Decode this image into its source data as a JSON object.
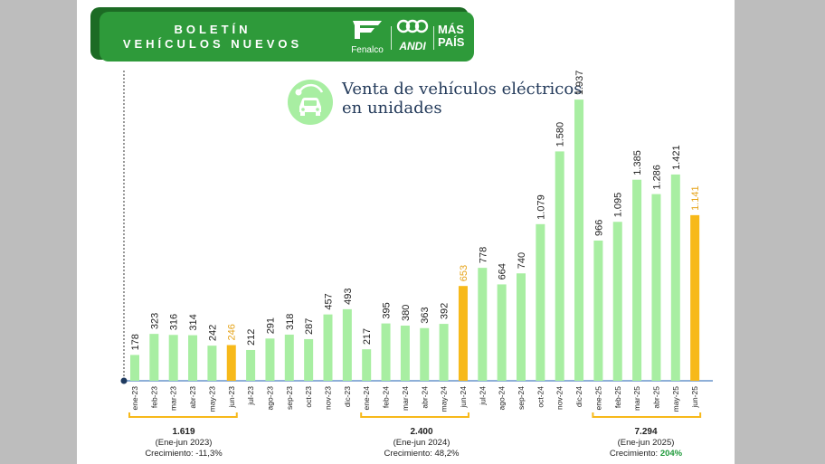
{
  "header": {
    "title_line1": "BOLETÍN",
    "title_line2": "VEHÍCULOS NUEVOS",
    "logos": [
      "Fenalco",
      "ANDI",
      "MÁS",
      "PAÍS"
    ]
  },
  "chart_data": {
    "type": "bar",
    "title_line1": "Venta de vehículos eléctricos",
    "title_line2": "en unidades",
    "categories": [
      "ene-23",
      "feb-23",
      "mar-23",
      "abr-23",
      "may-23",
      "jun-23",
      "jul-23",
      "ago-23",
      "sep-23",
      "oct-23",
      "nov-23",
      "dic-23",
      "ene-24",
      "feb-24",
      "mar-24",
      "abr-24",
      "may-24",
      "jun-24",
      "jul-24",
      "ago-24",
      "sep-24",
      "oct-24",
      "nov-24",
      "dic-24",
      "ene-25",
      "feb-25",
      "mar-25",
      "abr-25",
      "may-25",
      "jun-25"
    ],
    "values": [
      178,
      323,
      316,
      314,
      242,
      246,
      212,
      291,
      318,
      287,
      457,
      493,
      217,
      395,
      380,
      363,
      392,
      653,
      778,
      664,
      740,
      1079,
      1580,
      1937,
      966,
      1095,
      1385,
      1286,
      1421,
      1141
    ],
    "value_labels": [
      "178",
      "323",
      "316",
      "314",
      "242",
      "246",
      "212",
      "291",
      "318",
      "287",
      "457",
      "493",
      "217",
      "395",
      "380",
      "363",
      "392",
      "653",
      "778",
      "664",
      "740",
      "1.079",
      "1.580",
      "1.937",
      "966",
      "1.095",
      "1.385",
      "1.286",
      "1.421",
      "1.141"
    ],
    "highlighted": [
      "jun-23",
      "jun-24",
      "jun-25"
    ],
    "colors": {
      "bar": "#a8eea2",
      "highlight": "#f7b91a",
      "highlight_label": "#e6a41a",
      "axis": "#4a7fc1"
    },
    "ylim": [
      0,
      2000
    ],
    "grid": false,
    "summaries": [
      {
        "total": "1.619",
        "period": "(Ene-jun 2023)",
        "growth_label": "Crecimiento: ",
        "growth_value": "-11,3%",
        "growth_color": "#222222"
      },
      {
        "total": "2.400",
        "period": "(Ene-jun 2024)",
        "growth_label": "Crecimiento: ",
        "growth_value": "48,2%",
        "growth_color": "#222222"
      },
      {
        "total": "7.294",
        "period": "(Ene-jun 2025)",
        "growth_label": "Crecimiento: ",
        "growth_value": "204%",
        "growth_color": "#1f9a3a"
      }
    ]
  }
}
